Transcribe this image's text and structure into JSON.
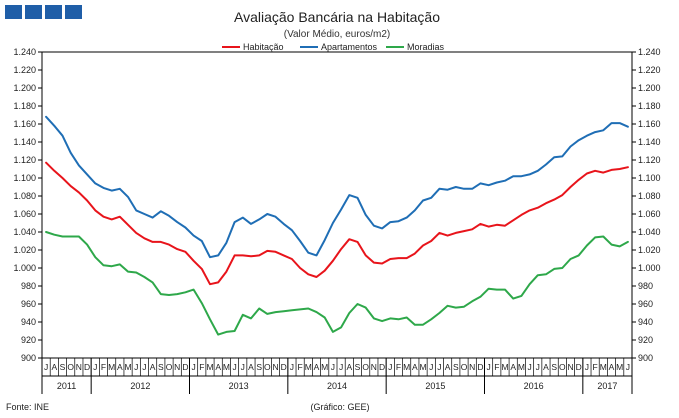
{
  "chart_data": {
    "type": "line",
    "title": "Avaliação Bancária na Habitação",
    "subtitle": "(Valor Médio, euros/m2)",
    "source": "Fonte: INE",
    "credit": "(Gráfico: GEE)",
    "ylim": [
      900,
      1240
    ],
    "yticks": [
      "900",
      "920",
      "940",
      "960",
      "980",
      "1.000",
      "1.020",
      "1.040",
      "1.060",
      "1.080",
      "1.100",
      "1.120",
      "1.140",
      "1.160",
      "1.180",
      "1.200",
      "1.220",
      "1.240"
    ],
    "month_labels": [
      "J",
      "A",
      "S",
      "O",
      "N",
      "D",
      "J",
      "F",
      "M",
      "A",
      "M",
      "J",
      "J",
      "A",
      "S",
      "O",
      "N",
      "D",
      "J",
      "F",
      "M",
      "A",
      "M",
      "J",
      "J",
      "A",
      "S",
      "O",
      "N",
      "D",
      "J",
      "F",
      "M",
      "A",
      "M",
      "J",
      "J",
      "A",
      "S",
      "O",
      "N",
      "D",
      "J",
      "F",
      "M",
      "A",
      "M",
      "J",
      "J",
      "A",
      "S",
      "O",
      "N",
      "D",
      "J",
      "F",
      "M",
      "A",
      "M",
      "J",
      "J",
      "A",
      "S",
      "O",
      "N",
      "D",
      "J",
      "F",
      "M",
      "A",
      "M",
      "J"
    ],
    "years": [
      {
        "label": "2011",
        "months": 6
      },
      {
        "label": "2012",
        "months": 12
      },
      {
        "label": "2013",
        "months": 12
      },
      {
        "label": "2014",
        "months": 12
      },
      {
        "label": "2015",
        "months": 12
      },
      {
        "label": "2016",
        "months": 12
      },
      {
        "label": "2017",
        "months": 6
      }
    ],
    "legend_position": "top-center",
    "series": [
      {
        "name": "Habitação",
        "color": "#e8141b",
        "values": [
          1117,
          1108,
          1100,
          1091,
          1084,
          1075,
          1064,
          1057,
          1054,
          1057,
          1048,
          1039,
          1033,
          1029,
          1029,
          1026,
          1021,
          1018,
          1008,
          999,
          982,
          984,
          996,
          1014,
          1014,
          1013,
          1014,
          1019,
          1018,
          1014,
          1010,
          1000,
          993,
          990,
          997,
          1008,
          1021,
          1032,
          1029,
          1014,
          1006,
          1005,
          1010,
          1011,
          1011,
          1016,
          1025,
          1030,
          1039,
          1036,
          1039,
          1041,
          1043,
          1049,
          1046,
          1048,
          1047,
          1053,
          1059,
          1064,
          1067,
          1072,
          1076,
          1081,
          1090,
          1098,
          1105,
          1108,
          1106,
          1109,
          1110,
          1112
        ]
      },
      {
        "name": "Apartamentos",
        "color": "#1f6eb5",
        "values": [
          1168,
          1158,
          1147,
          1128,
          1114,
          1104,
          1094,
          1089,
          1086,
          1088,
          1079,
          1064,
          1060,
          1056,
          1063,
          1058,
          1051,
          1045,
          1036,
          1030,
          1012,
          1014,
          1028,
          1051,
          1056,
          1049,
          1054,
          1060,
          1057,
          1049,
          1042,
          1030,
          1017,
          1014,
          1031,
          1050,
          1065,
          1081,
          1078,
          1059,
          1047,
          1044,
          1051,
          1052,
          1056,
          1064,
          1075,
          1078,
          1088,
          1087,
          1090,
          1088,
          1088,
          1094,
          1092,
          1095,
          1097,
          1102,
          1102,
          1104,
          1108,
          1115,
          1123,
          1124,
          1135,
          1142,
          1147,
          1151,
          1153,
          1161,
          1161,
          1157
        ]
      },
      {
        "name": "Moradias",
        "color": "#2ea84a",
        "values": [
          1040,
          1037,
          1035,
          1035,
          1035,
          1026,
          1012,
          1003,
          1002,
          1004,
          996,
          995,
          990,
          984,
          971,
          970,
          971,
          973,
          976,
          961,
          943,
          926,
          929,
          930,
          948,
          944,
          955,
          949,
          951,
          952,
          953,
          954,
          955,
          951,
          945,
          929,
          934,
          950,
          960,
          956,
          944,
          941,
          944,
          943,
          945,
          937,
          937,
          943,
          950,
          958,
          956,
          957,
          963,
          968,
          977,
          976,
          976,
          966,
          969,
          982,
          992,
          993,
          999,
          1000,
          1010,
          1014,
          1025,
          1034,
          1035,
          1026,
          1024,
          1029
        ]
      }
    ]
  }
}
